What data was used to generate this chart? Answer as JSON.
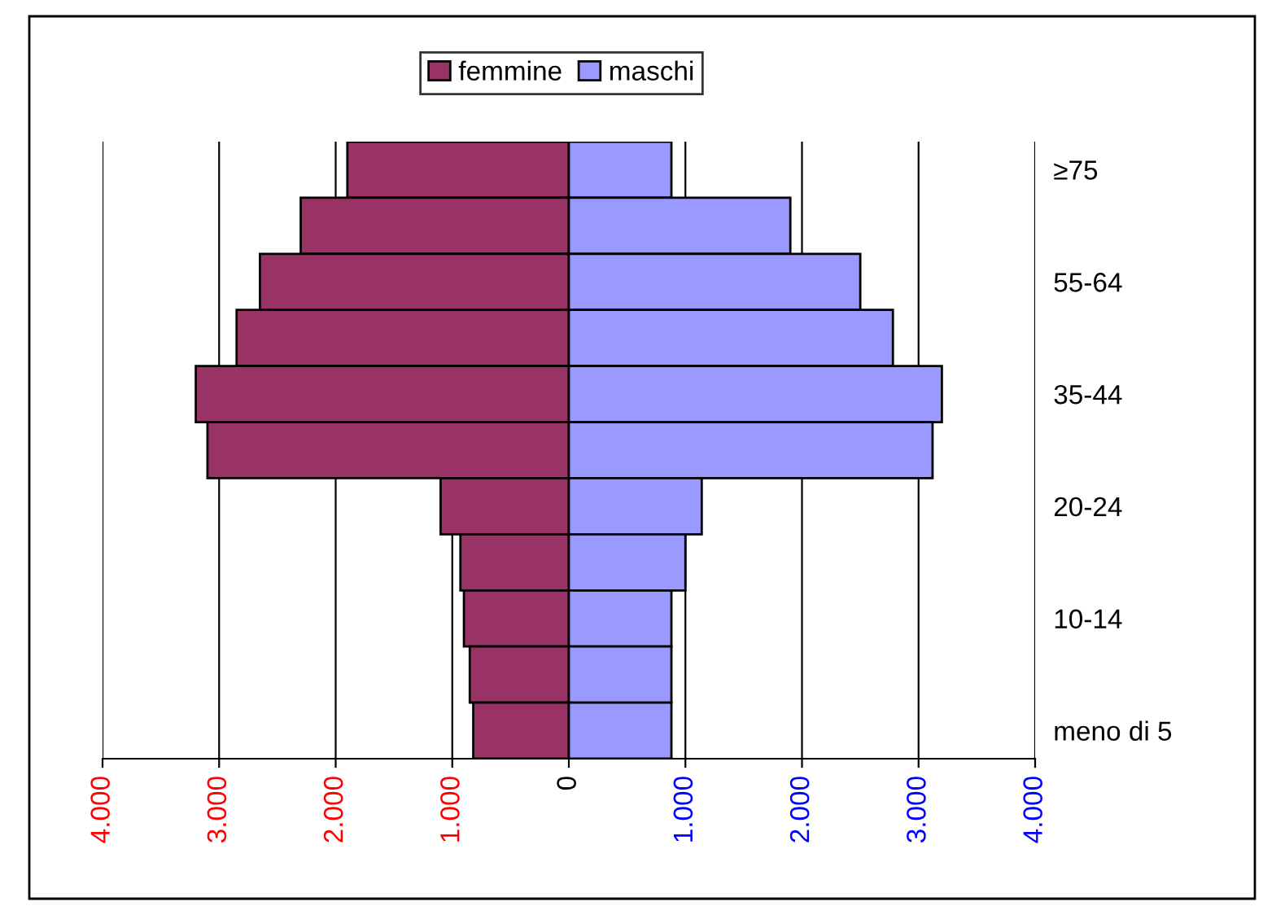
{
  "chart_data": {
    "type": "bar",
    "orientation": "horizontal",
    "categories": [
      "≥75",
      null,
      "55-64",
      null,
      "35-44",
      null,
      "20-24",
      null,
      "10-14",
      null,
      "meno di 5"
    ],
    "series": [
      {
        "name": "femmine",
        "color": "#993366",
        "values": [
          -1900,
          -2300,
          -2650,
          -2850,
          -3200,
          -3100,
          -1100,
          -930,
          -900,
          -850,
          -820
        ]
      },
      {
        "name": "maschi",
        "color": "#9999ff",
        "values": [
          880,
          1900,
          2500,
          2780,
          3200,
          3120,
          1140,
          1000,
          880,
          880,
          880
        ]
      }
    ],
    "xlim": [
      -4000,
      4000
    ],
    "xticks": [
      {
        "value": -4000,
        "label": "4.000"
      },
      {
        "value": -3000,
        "label": "3.000"
      },
      {
        "value": -2000,
        "label": "2.000"
      },
      {
        "value": -1000,
        "label": "1.000"
      },
      0,
      {
        "value": 1000,
        "label": "1.000"
      },
      {
        "value": 2000,
        "label": "2.000"
      },
      {
        "value": 3000,
        "label": "3.000"
      },
      {
        "value": 4000,
        "label": "4.000"
      }
    ],
    "grid": "x",
    "legend": "top",
    "stacked": true
  }
}
